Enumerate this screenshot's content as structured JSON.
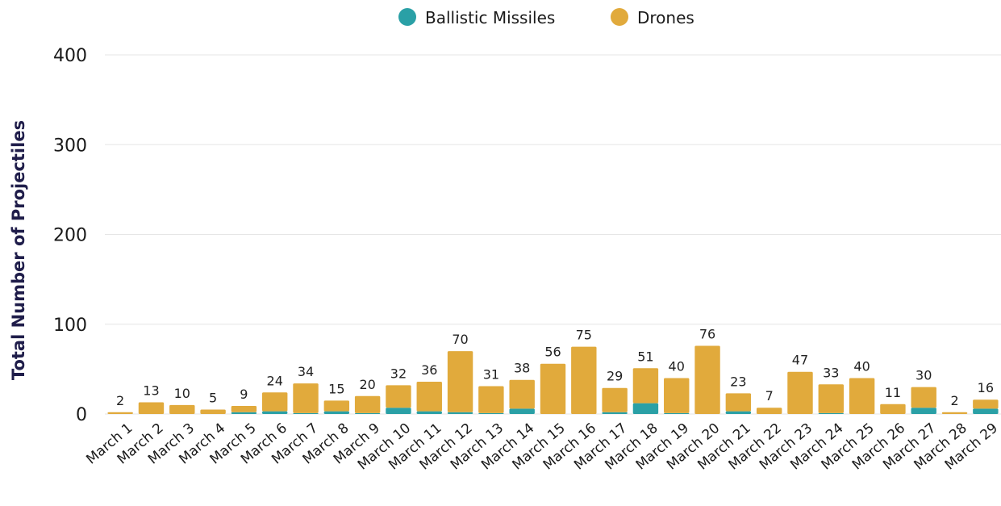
{
  "chart_data": {
    "type": "bar",
    "stacked": true,
    "ylabel": "Total Number of Projectiles",
    "ylim": [
      0,
      400
    ],
    "yticks": [
      0,
      100,
      200,
      300,
      400
    ],
    "grid": true,
    "legend_position": "top-center",
    "categories": [
      "March 1",
      "March 2",
      "March 3",
      "March 4",
      "March 5",
      "March 6",
      "March 7",
      "March 8",
      "March 9",
      "March 10",
      "March 11",
      "March 12",
      "March 13",
      "March 14",
      "March 15",
      "March 16",
      "March 17",
      "March 18",
      "March 19",
      "March 20",
      "March 21",
      "March 22",
      "March 23",
      "March 24",
      "March 25",
      "March 26",
      "March 27",
      "March 28",
      "March 29"
    ],
    "totals": [
      2,
      13,
      10,
      5,
      9,
      24,
      34,
      15,
      20,
      32,
      36,
      70,
      31,
      38,
      56,
      75,
      29,
      51,
      40,
      76,
      23,
      7,
      47,
      33,
      40,
      11,
      30,
      2,
      16
    ],
    "series": [
      {
        "name": "Ballistic Missiles",
        "color": "#2aa0a6",
        "values": [
          0,
          0,
          0,
          0,
          2,
          3,
          1,
          3,
          1,
          7,
          3,
          2,
          1,
          6,
          0,
          0,
          2,
          12,
          1,
          0,
          3,
          0,
          0,
          1,
          0,
          0,
          7,
          0,
          6
        ]
      },
      {
        "name": "Drones",
        "color": "#e1aa3c",
        "values": [
          2,
          13,
          10,
          5,
          7,
          21,
          33,
          12,
          19,
          25,
          33,
          68,
          30,
          32,
          56,
          75,
          27,
          39,
          39,
          76,
          20,
          7,
          47,
          32,
          40,
          11,
          23,
          2,
          10
        ]
      }
    ]
  }
}
